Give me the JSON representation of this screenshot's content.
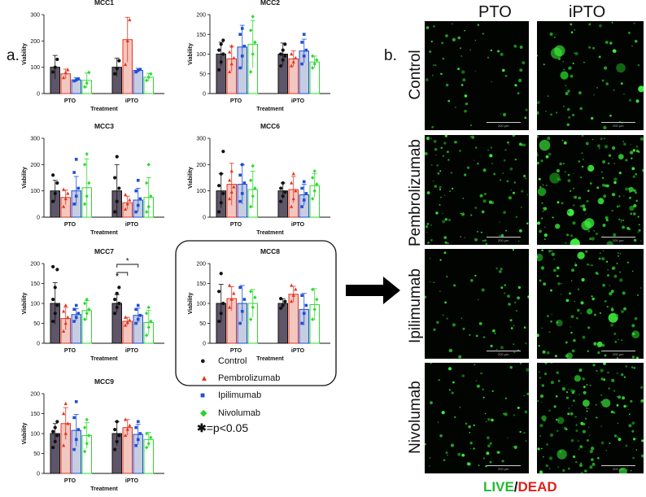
{
  "panel_a_label": "a.",
  "panel_b_label": "b.",
  "chart_data": [
    {
      "type": "bar",
      "title": "MCC1",
      "ylabel": "Viability",
      "xlabel": "Treatment",
      "groups": [
        "PTO",
        "iPTO"
      ],
      "ylim": [
        0,
        300
      ],
      "yticks": [
        0,
        100,
        200,
        300
      ],
      "series": [
        {
          "name": "Control",
          "values": [
            100,
            100
          ],
          "errors": [
            45,
            35
          ],
          "points": [
            [
              82,
              100,
              130
            ],
            [
              75,
              95,
              125
            ]
          ]
        },
        {
          "name": "Pembrolizumab",
          "values": [
            75,
            205
          ],
          "errors": [
            18,
            85
          ],
          "points": [
            [
              60,
              80,
              90
            ],
            [
              110,
              200,
              280
            ]
          ]
        },
        {
          "name": "Ipilimumab",
          "values": [
            52,
            88
          ],
          "errors": [
            8,
            8
          ],
          "points": [
            [
              48,
              52,
              56
            ],
            [
              82,
              88,
              92
            ]
          ]
        },
        {
          "name": "Nivolumab",
          "values": [
            50,
            62
          ],
          "errors": [
            28,
            15
          ],
          "points": [
            [
              25,
              40,
              80
            ],
            [
              50,
              62,
              75
            ]
          ]
        }
      ]
    },
    {
      "type": "bar",
      "title": "MCC2",
      "ylabel": "Viability",
      "xlabel": "Treatment",
      "groups": [
        "PTO",
        "iPTO"
      ],
      "ylim": [
        0,
        200
      ],
      "yticks": [
        0,
        50,
        100,
        150,
        200
      ],
      "series": [
        {
          "name": "Control",
          "values": [
            100,
            100
          ],
          "errors": [
            30,
            28
          ],
          "points": [
            [
              60,
              80,
              100,
              110,
              125,
              135
            ],
            [
              70,
              85,
              95,
              100,
              110,
              125
            ]
          ]
        },
        {
          "name": "Pembrolizumab",
          "values": [
            88,
            88
          ],
          "errors": [
            32,
            20
          ],
          "points": [
            [
              55,
              75,
              90,
              105,
              120
            ],
            [
              70,
              80,
              90,
              100
            ]
          ]
        },
        {
          "name": "Ipilimumab",
          "values": [
            118,
            108
          ],
          "errors": [
            55,
            30
          ],
          "points": [
            [
              65,
              95,
              120,
              150,
              165
            ],
            [
              75,
              95,
              110,
              130,
              150
            ]
          ]
        },
        {
          "name": "Nivolumab",
          "values": [
            125,
            80
          ],
          "errors": [
            60,
            15
          ],
          "points": [
            [
              55,
              100,
              130,
              160,
              195
            ],
            [
              65,
              75,
              85,
              95
            ]
          ]
        }
      ]
    },
    {
      "type": "bar",
      "title": "MCC3",
      "ylabel": "Viability",
      "xlabel": "Treatment",
      "groups": [
        "PTO",
        "iPTO"
      ],
      "ylim": [
        0,
        300
      ],
      "yticks": [
        0,
        100,
        200,
        300
      ],
      "series": [
        {
          "name": "Control",
          "values": [
            100,
            100
          ],
          "errors": [
            40,
            100
          ],
          "points": [
            [
              60,
              90,
              130,
              160
            ],
            [
              20,
              60,
              110,
              150,
              230
            ]
          ]
        },
        {
          "name": "Pembrolizumab",
          "values": [
            75,
            55
          ],
          "errors": [
            28,
            25
          ],
          "points": [
            [
              40,
              70,
              90,
              105
            ],
            [
              30,
              50,
              65,
              85
            ]
          ]
        },
        {
          "name": "Ipilimumab",
          "values": [
            100,
            65
          ],
          "errors": [
            55,
            45
          ],
          "points": [
            [
              50,
              80,
              110,
              170,
              220
            ],
            [
              20,
              45,
              70,
              100,
              140
            ]
          ]
        },
        {
          "name": "Nivolumab",
          "values": [
            112,
            75
          ],
          "errors": [
            110,
            75
          ],
          "points": [
            [
              50,
              80,
              130,
              200,
              240
            ],
            [
              20,
              40,
              80,
              130,
              200
            ]
          ]
        }
      ]
    },
    {
      "type": "bar",
      "title": "MCC6",
      "ylabel": "Viability",
      "xlabel": "Treatment",
      "groups": [
        "PTO",
        "iPTO"
      ],
      "ylim": [
        0,
        300
      ],
      "yticks": [
        0,
        100,
        200,
        300
      ],
      "series": [
        {
          "name": "Control",
          "values": [
            100,
            100
          ],
          "errors": [
            65,
            30
          ],
          "points": [
            [
              20,
              55,
              90,
              120,
              165,
              250
            ],
            [
              60,
              80,
              95,
              110,
              130
            ]
          ]
        },
        {
          "name": "Pembrolizumab",
          "values": [
            125,
            105
          ],
          "errors": [
            80,
            50
          ],
          "points": [
            [
              70,
              95,
              115,
              140,
              175
            ],
            [
              40,
              70,
              100,
              130,
              165
            ]
          ]
        },
        {
          "name": "Ipilimumab",
          "values": [
            125,
            85
          ],
          "errors": [
            75,
            40
          ],
          "points": [
            [
              60,
              90,
              130,
              160,
              200
            ],
            [
              40,
              65,
              90,
              110,
              135
            ]
          ]
        },
        {
          "name": "Nivolumab",
          "values": [
            105,
            120
          ],
          "errors": [
            70,
            45
          ],
          "points": [
            [
              40,
              80,
              110,
              140,
              195
            ],
            [
              70,
              100,
              125,
              150,
              175
            ]
          ]
        }
      ]
    },
    {
      "type": "bar",
      "title": "MCC7",
      "ylabel": "Viability",
      "xlabel": "Treatment",
      "groups": [
        "PTO",
        "iPTO"
      ],
      "ylim": [
        0,
        200
      ],
      "yticks": [
        0,
        50,
        100,
        150,
        200
      ],
      "series": [
        {
          "name": "Control",
          "values": [
            100,
            100
          ],
          "errors": [
            52,
            22
          ],
          "points": [
            [
              55,
              75,
              95,
              110,
              140,
              185,
              192
            ],
            [
              75,
              90,
              100,
              110,
              125,
              140
            ]
          ]
        },
        {
          "name": "Pembrolizumab",
          "values": [
            62,
            55
          ],
          "errors": [
            28,
            10
          ],
          "points": [
            [
              30,
              50,
              65,
              80,
              95
            ],
            [
              45,
              52,
              58,
              65
            ]
          ]
        },
        {
          "name": "Ipilimumab",
          "values": [
            72,
            70
          ],
          "errors": [
            15,
            18
          ],
          "points": [
            [
              55,
              65,
              75,
              85,
              95
            ],
            [
              50,
              60,
              70,
              85,
              95
            ]
          ]
        },
        {
          "name": "Nivolumab",
          "values": [
            82,
            52
          ],
          "errors": [
            25,
            30
          ],
          "points": [
            [
              60,
              75,
              85,
              100,
              110
            ],
            [
              20,
              40,
              55,
              75,
              90
            ]
          ]
        }
      ],
      "annotations": [
        "*",
        "*"
      ]
    },
    {
      "type": "bar",
      "title": "MCC8",
      "ylabel": "Viability",
      "xlabel": "Treatment",
      "groups": [
        "PTO",
        "iPTO"
      ],
      "ylim": [
        0,
        200
      ],
      "yticks": [
        0,
        50,
        100,
        150,
        200
      ],
      "series": [
        {
          "name": "Control",
          "values": [
            100,
            100
          ],
          "errors": [
            48,
            12
          ],
          "points": [
            [
              55,
              75,
              100,
              130,
              175
            ],
            [
              88,
              95,
              105,
              112
            ]
          ]
        },
        {
          "name": "Pembrolizumab",
          "values": [
            112,
            123
          ],
          "errors": [
            30,
            20
          ],
          "points": [
            [
              90,
              110,
              125,
              145
            ],
            [
              105,
              120,
              135,
              145
            ]
          ]
        },
        {
          "name": "Ipilimumab",
          "values": [
            100,
            85
          ],
          "errors": [
            45,
            40
          ],
          "points": [
            [
              50,
              80,
              110,
              140
            ],
            [
              50,
              75,
              95,
              120
            ]
          ]
        },
        {
          "name": "Nivolumab",
          "values": [
            100,
            97
          ],
          "errors": [
            35,
            40
          ],
          "points": [
            [
              60,
              90,
              115,
              130
            ],
            [
              60,
              85,
              110,
              135
            ]
          ]
        }
      ]
    },
    {
      "type": "bar",
      "title": "MCC9",
      "ylabel": "Viability",
      "xlabel": "Treatment",
      "groups": [
        "PTO",
        "iPTO"
      ],
      "ylim": [
        0,
        200
      ],
      "yticks": [
        0,
        50,
        100,
        150,
        200
      ],
      "series": [
        {
          "name": "Control",
          "values": [
            100,
            100
          ],
          "errors": [
            25,
            30
          ],
          "points": [
            [
              65,
              80,
              95,
              105,
              115,
              130
            ],
            [
              60,
              80,
              95,
              110,
              130
            ]
          ]
        },
        {
          "name": "Pembrolizumab",
          "values": [
            125,
            115
          ],
          "errors": [
            40,
            20
          ],
          "points": [
            [
              70,
              100,
              125,
              150,
              175
            ],
            [
              95,
              110,
              120,
              135
            ]
          ]
        },
        {
          "name": "Ipilimumab",
          "values": [
            108,
            98
          ],
          "errors": [
            40,
            25
          ],
          "points": [
            [
              60,
              85,
              110,
              140,
              180
            ],
            [
              70,
              85,
              100,
              115,
              130
            ]
          ]
        },
        {
          "name": "Nivolumab",
          "values": [
            95,
            85
          ],
          "errors": [
            32,
            18
          ],
          "points": [
            [
              55,
              75,
              95,
              115,
              135
            ],
            [
              65,
              75,
              90,
              100
            ]
          ]
        }
      ]
    }
  ],
  "legend": {
    "items": [
      {
        "label": "Control",
        "marker": "●",
        "color": "#1a1a1a"
      },
      {
        "label": "Pembrolizumab",
        "marker": "▲",
        "color": "#e8331f"
      },
      {
        "label": "Ipilimumab",
        "marker": "■",
        "color": "#1f4fd8"
      },
      {
        "label": "Nivolumab",
        "marker": "◆",
        "color": "#27d32a"
      }
    ],
    "significance": "=p<0.05",
    "significance_marker": "✱"
  },
  "colors": {
    "control_fill": "#5e5668",
    "control_dot": "#111111",
    "pembro_fill": "#f2c7bf",
    "pembro_dot": "#e8331f",
    "ipi_fill": "#c5cde3",
    "ipi_dot": "#1f4fd8",
    "nivo_fill": "#ffffff",
    "nivo_dot": "#2fd92f"
  },
  "microscopy": {
    "columns": [
      "PTO",
      "iPTO"
    ],
    "rows": [
      "Control",
      "Pembrolizumab",
      "Ipilimumab",
      "Nivolumab"
    ],
    "scale_label": "200 µm",
    "caption_live": "LIVE",
    "caption_sep": "/",
    "caption_dead": "DEAD",
    "live_color": "#22bb33",
    "dead_color": "#e0201b"
  }
}
